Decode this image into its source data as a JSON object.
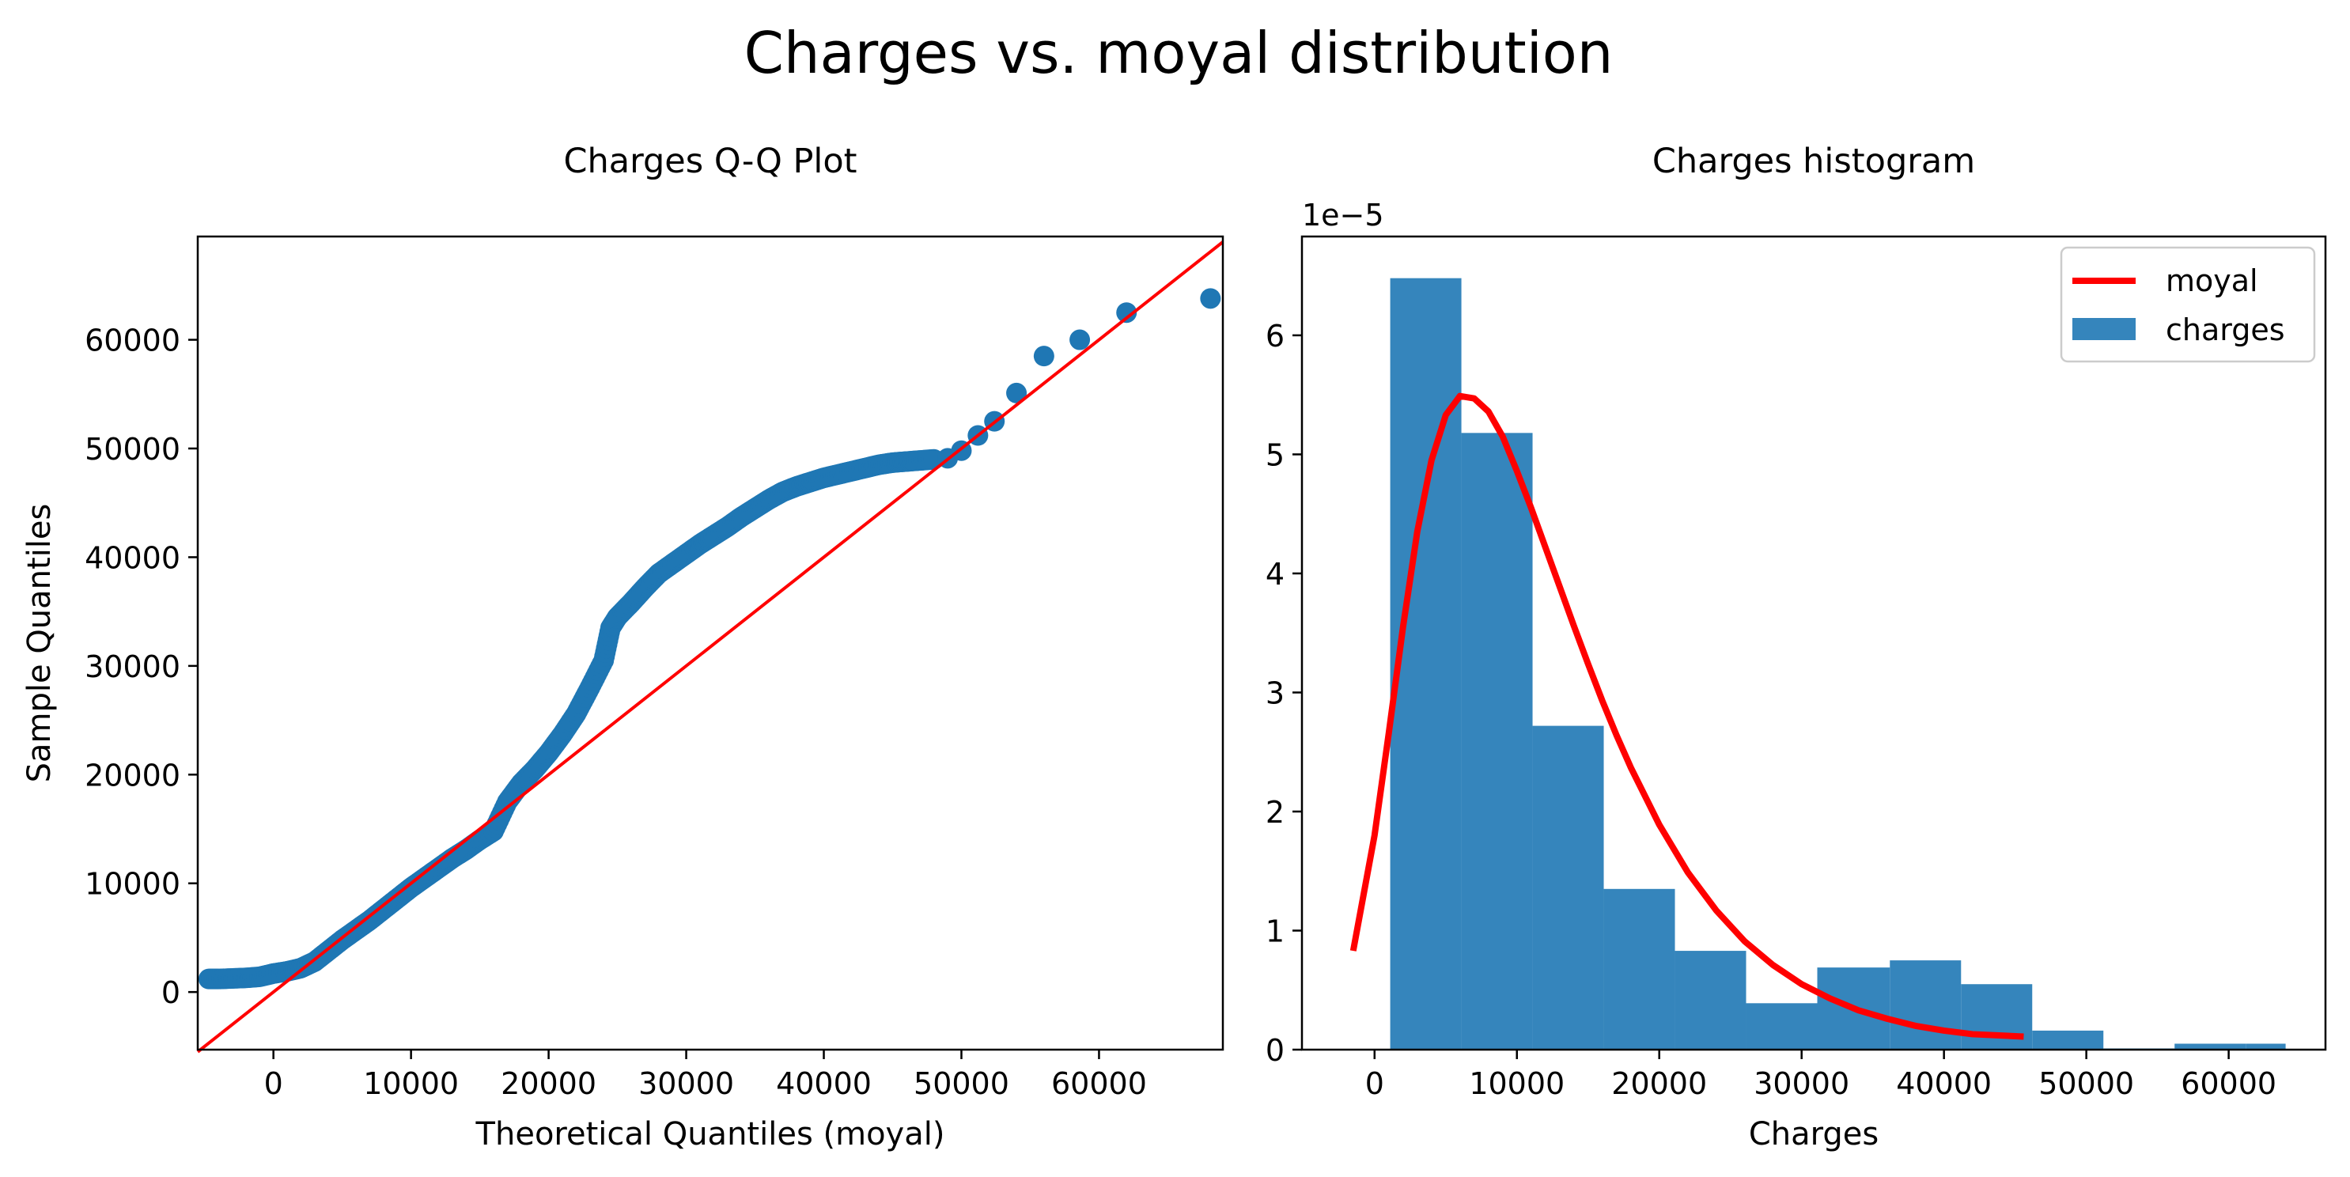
{
  "figure": {
    "suptitle": "Charges vs. moyal distribution"
  },
  "chart_data": [
    {
      "type": "scatter",
      "title": "Charges Q-Q Plot",
      "xlabel": "Theoretical Quantiles (moyal)",
      "ylabel": "Sample Quantiles",
      "xlim": [
        -5500,
        69000
      ],
      "ylim": [
        -5300,
        69500
      ],
      "xticks": [
        0,
        10000,
        20000,
        30000,
        40000,
        50000,
        60000
      ],
      "yticks": [
        0,
        10000,
        20000,
        30000,
        40000,
        50000,
        60000
      ],
      "grid": false,
      "reference_line": {
        "x": [
          -5500,
          69000
        ],
        "y": [
          -5500,
          69000
        ],
        "color": "#ff0000"
      },
      "point_color": "#1f77b4",
      "points": {
        "x": [
          -4700,
          -4000,
          -3000,
          -2000,
          -1000,
          0,
          1000,
          2000,
          3000,
          4000,
          5000,
          6000,
          7000,
          8000,
          9000,
          10000,
          11000,
          12000,
          13000,
          14000,
          15000,
          16000,
          17000,
          18000,
          19000,
          20000,
          21000,
          22000,
          23000,
          24000,
          24500,
          25000,
          26000,
          27000,
          28000,
          29000,
          30000,
          31000,
          32000,
          33000,
          34000,
          35000,
          36000,
          37000,
          38000,
          39000,
          40000,
          41000,
          42000,
          43000,
          44000,
          45000,
          46000,
          47000,
          48000,
          49000,
          50000,
          51200,
          52400,
          54000,
          56000,
          58600,
          62000,
          68100
        ],
        "y": [
          1200,
          1200,
          1250,
          1300,
          1400,
          1700,
          1900,
          2200,
          2800,
          3800,
          4800,
          5700,
          6600,
          7600,
          8600,
          9600,
          10500,
          11400,
          12300,
          13100,
          14000,
          14800,
          17500,
          19200,
          20500,
          22000,
          23700,
          25600,
          28000,
          30500,
          33500,
          34500,
          35800,
          37200,
          38500,
          39400,
          40300,
          41200,
          42000,
          42800,
          43700,
          44500,
          45300,
          46000,
          46500,
          46900,
          47300,
          47600,
          47900,
          48200,
          48500,
          48700,
          48800,
          48900,
          49000,
          49100,
          49800,
          51200,
          52500,
          55100,
          58500,
          60000,
          62500,
          63800
        ]
      }
    },
    {
      "type": "bar",
      "title": "Charges histogram",
      "xlabel": "Charges",
      "ylabel": "",
      "scale_label": "1e−5",
      "xlim": [
        -5100,
        66800
      ],
      "ylim": [
        0,
        6.83
      ],
      "xticks": [
        0,
        10000,
        20000,
        30000,
        40000,
        50000,
        60000
      ],
      "yticks": [
        0,
        1,
        2,
        3,
        4,
        5,
        6
      ],
      "grid": false,
      "bin_edges": [
        1100,
        6100,
        11100,
        16100,
        21100,
        26100,
        31100,
        36200,
        41200,
        46200,
        51200,
        56200,
        61200,
        64000
      ],
      "values": [
        6.48,
        5.18,
        2.72,
        1.35,
        0.83,
        0.39,
        0.69,
        0.75,
        0.55,
        0.16,
        0.01,
        0.05,
        0.05
      ],
      "bar_color": "#3585bc",
      "legend": {
        "location": "upper right",
        "entries": [
          "moyal",
          "charges"
        ]
      },
      "curve": {
        "name": "moyal",
        "color": "#ff0000",
        "x": [
          -1500,
          0,
          1000,
          2000,
          3000,
          4000,
          5000,
          6000,
          7000,
          8000,
          9000,
          10000,
          11000,
          12000,
          13000,
          14000,
          15000,
          16000,
          17000,
          18000,
          20000,
          22000,
          24000,
          26000,
          28000,
          30000,
          32000,
          34000,
          36000,
          38000,
          40000,
          42000,
          45600
        ],
        "y": [
          0.83,
          1.8,
          2.66,
          3.55,
          4.35,
          4.95,
          5.33,
          5.49,
          5.47,
          5.36,
          5.15,
          4.86,
          4.55,
          4.22,
          3.89,
          3.56,
          3.24,
          2.93,
          2.64,
          2.37,
          1.89,
          1.49,
          1.17,
          0.91,
          0.71,
          0.55,
          0.43,
          0.33,
          0.26,
          0.2,
          0.16,
          0.13,
          0.11
        ]
      }
    }
  ]
}
